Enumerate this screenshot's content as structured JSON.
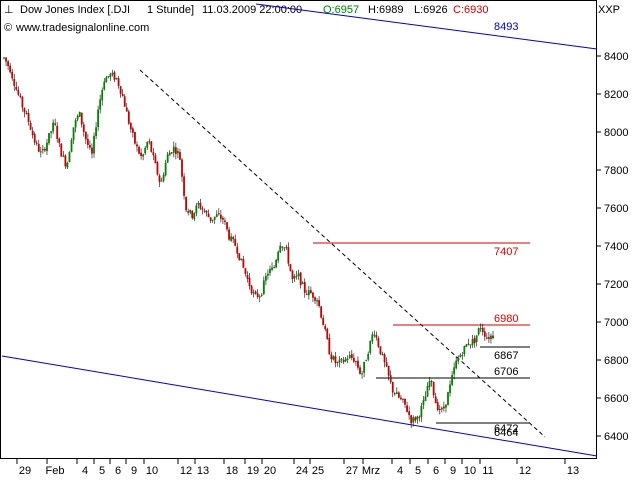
{
  "header": {
    "instrument": "Dow Jones Index [.DJI",
    "interval": "1 Stunde]",
    "datetime": "11.03.2009 22:00:00",
    "open": "O:6957",
    "high": "H:6989",
    "low": "L:6926",
    "close": "C:6930",
    "website": "www.tradesignalonline.com",
    "symbol": "XXP"
  },
  "colors": {
    "up": "#008000",
    "down": "#c00000",
    "wick": "#000000",
    "channel": "#0000c0",
    "resistance": "#d00000",
    "support": "#000000",
    "open_text": "#008000",
    "close_text": "#d00000"
  },
  "chart_data": {
    "type": "candlestick",
    "title": "Dow Jones Index [.DJI 1 Stunde]",
    "ylim": [
      6300,
      8600
    ],
    "yticks": [
      6400,
      6600,
      6800,
      7000,
      7200,
      7400,
      7600,
      7800,
      8000,
      8200,
      8400
    ],
    "ytick_labels": [
      "6400",
      "6600",
      "6800",
      "7000",
      "7200",
      "7400",
      "7600",
      "7800",
      "8000",
      "8200",
      "8400"
    ],
    "xtick_labels": [
      "29",
      "Feb",
      "4",
      "5",
      "6",
      "9",
      "10",
      "12",
      "13",
      "18",
      "19",
      "20",
      "24",
      "25",
      "27",
      "Mrz",
      "4",
      "5",
      "6",
      "9",
      "10",
      "11",
      "12",
      "13"
    ],
    "path": [
      8390,
      8330,
      8220,
      8130,
      8050,
      7940,
      7880,
      7960,
      8050,
      7900,
      7820,
      8020,
      8100,
      7970,
      7870,
      8120,
      8280,
      8300,
      8280,
      8180,
      8040,
      7930,
      7860,
      7960,
      7840,
      7720,
      7870,
      7920,
      7880,
      7600,
      7560,
      7620,
      7580,
      7540,
      7560,
      7540,
      7440,
      7400,
      7300,
      7210,
      7130,
      7150,
      7260,
      7280,
      7420,
      7380,
      7220,
      7240,
      7160,
      7150,
      7120,
      6980,
      6830,
      6780,
      6790,
      6820,
      6800,
      6720,
      6840,
      6960,
      6850,
      6750,
      6640,
      6600,
      6560,
      6480,
      6500,
      6580,
      6700,
      6560,
      6530,
      6640,
      6780,
      6840,
      6890,
      6900,
      6980,
      6920,
      6930
    ],
    "levels": [
      {
        "value": 8493,
        "label": "8493",
        "kind": "channel"
      },
      {
        "value": 7407,
        "label": "7407",
        "kind": "resistance"
      },
      {
        "value": 6980,
        "label": "6980",
        "kind": "resistance"
      },
      {
        "value": 6867,
        "label": "6867",
        "kind": "support"
      },
      {
        "value": 6706,
        "label": "6706",
        "kind": "support"
      },
      {
        "value": 6472,
        "label": "6472",
        "kind": "support"
      },
      {
        "value": 6464,
        "label": "6464",
        "kind": "support"
      }
    ]
  }
}
